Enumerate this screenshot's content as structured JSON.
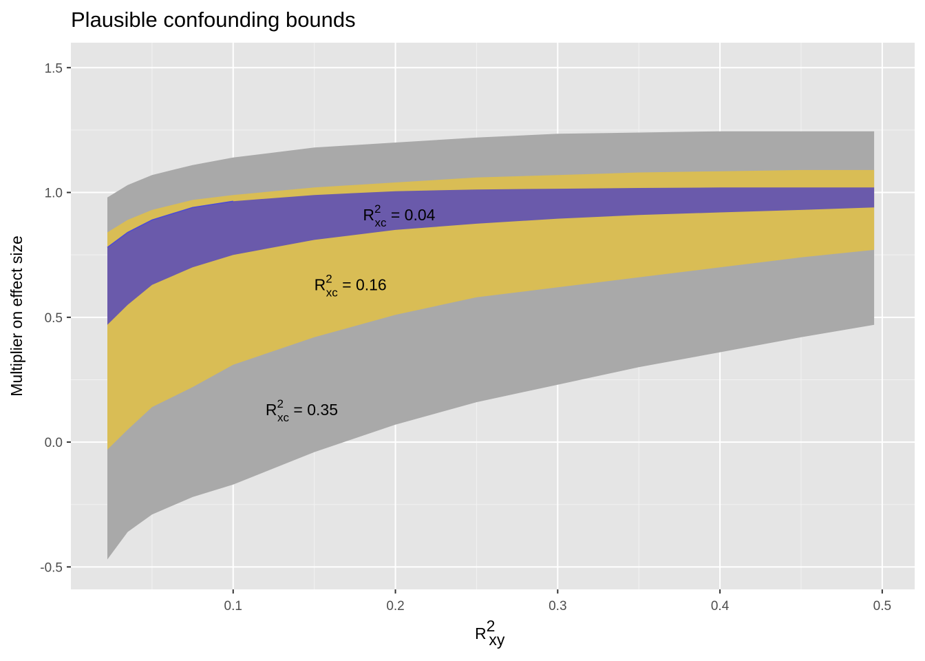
{
  "chart_data": {
    "type": "area",
    "title": "Plausible confounding bounds",
    "xlabel": {
      "base": "R",
      "sup": "2",
      "sub": "xy"
    },
    "ylabel": "Multiplier on effect size",
    "xlim": [
      0.0,
      0.52
    ],
    "ylim": [
      -0.59,
      1.6
    ],
    "x_ticks": [
      {
        "value": 0.1,
        "label": "0.1"
      },
      {
        "value": 0.2,
        "label": "0.2"
      },
      {
        "value": 0.3,
        "label": "0.3"
      },
      {
        "value": 0.4,
        "label": "0.4"
      },
      {
        "value": 0.5,
        "label": "0.5"
      }
    ],
    "x_minor_ticks": [
      0.05,
      0.15,
      0.25,
      0.35,
      0.45
    ],
    "y_ticks": [
      {
        "value": -0.5,
        "label": "-0.5"
      },
      {
        "value": 0.0,
        "label": "0.0"
      },
      {
        "value": 0.5,
        "label": "0.5"
      },
      {
        "value": 1.0,
        "label": "1.0"
      },
      {
        "value": 1.5,
        "label": "1.5"
      }
    ],
    "y_minor_ticks": [
      -0.25,
      0.25,
      0.75,
      1.25
    ],
    "grid": true,
    "background": "#e5e5e5",
    "x": [
      0.0225,
      0.035,
      0.05,
      0.075,
      0.1,
      0.15,
      0.2,
      0.25,
      0.3,
      0.35,
      0.4,
      0.45,
      0.495
    ],
    "series": [
      {
        "color": "#a9a9a9",
        "upper": [
          0.98,
          1.03,
          1.07,
          1.11,
          1.14,
          1.18,
          1.2,
          1.22,
          1.235,
          1.24,
          1.245,
          1.245,
          1.245
        ],
        "lower": [
          -0.47,
          -0.36,
          -0.29,
          -0.22,
          -0.17,
          -0.04,
          0.07,
          0.16,
          0.23,
          0.3,
          0.36,
          0.42,
          0.47
        ]
      },
      {
        "color": "#d9bd55",
        "upper": [
          0.84,
          0.89,
          0.93,
          0.97,
          0.99,
          1.02,
          1.04,
          1.06,
          1.07,
          1.08,
          1.085,
          1.09,
          1.09
        ],
        "lower": [
          -0.03,
          0.05,
          0.14,
          0.22,
          0.31,
          0.42,
          0.51,
          0.58,
          0.62,
          0.66,
          0.7,
          0.74,
          0.77
        ]
      },
      {
        "color": "#6a5aab",
        "upper": [
          0.78,
          0.84,
          0.89,
          0.94,
          0.965,
          0.99,
          1.005,
          1.012,
          1.015,
          1.018,
          1.02,
          1.02,
          1.02
        ],
        "lower": [
          0.47,
          0.55,
          0.63,
          0.7,
          0.75,
          0.81,
          0.85,
          0.875,
          0.895,
          0.91,
          0.92,
          0.93,
          0.94
        ]
      }
    ],
    "annotations": [
      {
        "base": "R",
        "sup": "2",
        "sub": "xc",
        "text": " = 0.04",
        "x": 0.18,
        "y": 0.91
      },
      {
        "base": "R",
        "sup": "2",
        "sub": "xc",
        "text": " = 0.16",
        "x": 0.15,
        "y": 0.63
      },
      {
        "base": "R",
        "sup": "2",
        "sub": "xc",
        "text": " = 0.35",
        "x": 0.12,
        "y": 0.13
      }
    ]
  }
}
